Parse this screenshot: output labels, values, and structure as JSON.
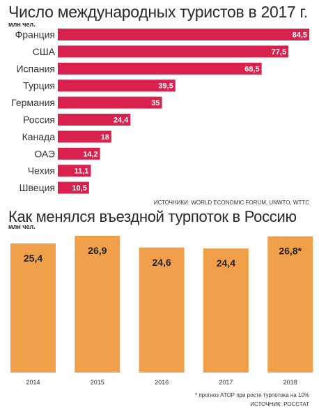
{
  "chart_data": [
    {
      "type": "bar",
      "orientation": "horizontal",
      "title": "Число международных туристов в 2017 г.",
      "unit_label": "млн чел.",
      "categories": [
        "Франция",
        "США",
        "Испания",
        "Турция",
        "Германия",
        "Россия",
        "Канада",
        "ОАЭ",
        "Чехия",
        "Швеция"
      ],
      "values": [
        84.5,
        77.5,
        68.5,
        39.5,
        35,
        24.4,
        18,
        14.2,
        11.1,
        10.5
      ],
      "value_labels": [
        "84,5",
        "77,5",
        "68,5",
        "39,5",
        "35",
        "24,4",
        "18",
        "14,2",
        "11,1",
        "10,5"
      ],
      "xlim": [
        0,
        84.5
      ],
      "grid": false,
      "legend": "none",
      "bar_color": "#d9214e",
      "source": "ИСТОЧНИКИ: WORLD ECONOMIC FORUM, UNWTO, WTTC"
    },
    {
      "type": "bar",
      "orientation": "vertical",
      "title": "Как менялся въездной турпоток в Россию",
      "unit_label": "млн чел.",
      "categories": [
        "2014",
        "2015",
        "2016",
        "2017",
        "2018"
      ],
      "values": [
        25.4,
        26.9,
        24.6,
        24.4,
        26.8
      ],
      "value_labels": [
        "25,4",
        "26,9",
        "24,6",
        "24,4",
        "26,8*"
      ],
      "ylim": [
        0,
        26.9
      ],
      "grid": false,
      "legend": "none",
      "bar_color": "#f0a04b",
      "note": "* прогноз АТОР при росте турпотока на 10%",
      "source": "ИСТОЧНИК: РОССТАТ"
    }
  ]
}
